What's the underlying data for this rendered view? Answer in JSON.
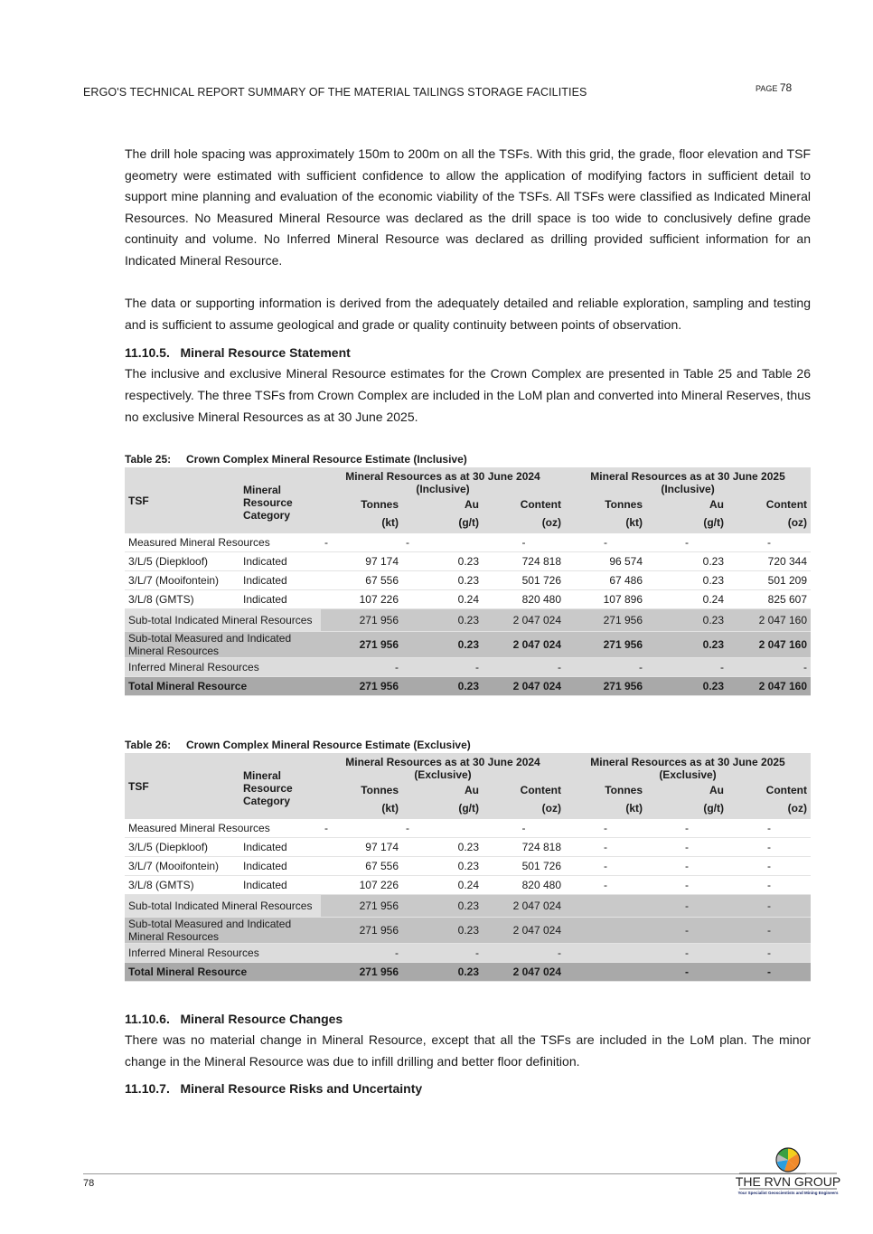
{
  "header": {
    "title": "ERGO'S TECHNICAL REPORT SUMMARY OF THE MATERIAL TAILINGS STORAGE FACILITIES",
    "page_prefix": "PAGE",
    "page_number": "78"
  },
  "paragraphs": {
    "p1": "The drill hole spacing was approximately 150m to 200m on all the TSFs. With this grid, the grade, floor elevation and TSF geometry were estimated with sufficient confidence to allow the application of modifying factors in sufficient detail to support mine planning and evaluation of the economic viability of the TSFs. All TSFs were classified as Indicated Mineral Resources. No Measured Mineral Resource was declared as the drill space is too wide to conclusively define grade continuity and volume. No Inferred Mineral Resource was declared as drilling provided sufficient information for an Indicated Mineral Resource.",
    "p2": "The data or supporting information is derived from the adequately detailed and reliable exploration, sampling and testing and is sufficient to assume geological and grade or quality continuity between points of observation.",
    "h1": "11.10.5.   Mineral Resource Statement",
    "p3": "The inclusive and exclusive Mineral Resource estimates for the Crown Complex are presented in Table 25 and Table 26 respectively. The three TSFs from Crown Complex are included in the LoM plan and converted into Mineral Reserves, thus no exclusive Mineral Resources as at 30 June 2025.",
    "h2": "11.10.6.   Mineral Resource Changes",
    "p4": "There was no material change in Mineral Resource, except that all the TSFs are included in the LoM plan. The minor change in the Mineral Resource was due to infill drilling and better floor definition.",
    "h3": "11.10.7.   Mineral Resource Risks and Uncertainty"
  },
  "tables": [
    {
      "label": "Table 25:",
      "title": "Crown Complex Mineral Resource Estimate (Inclusive)",
      "h_tsf": "TSF",
      "h_cat": "Mineral Resource Category",
      "h_group1": "Mineral Resources as at 30 June 2024 (Inclusive)",
      "h_group2": "Mineral Resources as at 30 June 2025 (Inclusive)",
      "h_cols": [
        "Tonnes",
        "Au",
        "Content",
        "Tonnes",
        "Au",
        "Content"
      ],
      "h_units": [
        "(kt)",
        "(g/t)",
        "(oz)",
        "(kt)",
        "(g/t)",
        "(oz)"
      ],
      "measured": {
        "label": "Measured Mineral Resources",
        "values": [
          "-",
          "-",
          "-",
          "-",
          "-",
          "-"
        ]
      },
      "rows": [
        {
          "tsf": "3/L/5 (Diepkloof)",
          "cat": "Indicated",
          "values": [
            "97 174",
            "0.23",
            "724 818",
            "96 574",
            "0.23",
            "720 344"
          ]
        },
        {
          "tsf": "3/L/7 (Mooifontein)",
          "cat": "Indicated",
          "values": [
            "67 556",
            "0.23",
            "501 726",
            "67 486",
            "0.23",
            "501 209"
          ]
        },
        {
          "tsf": "3/L/8 (GMTS)",
          "cat": "Indicated",
          "values": [
            "107 226",
            "0.24",
            "820 480",
            "107 896",
            "0.24",
            "825 607"
          ]
        }
      ],
      "subtotal_indicated": {
        "label": "Sub-total Indicated Mineral Resources",
        "values": [
          "271 956",
          "0.23",
          "2 047 024",
          "271 956",
          "0.23",
          "2 047 160"
        ]
      },
      "subtotal_mi": {
        "label": "Sub-total Measured and Indicated Mineral Resources",
        "values": [
          "271 956",
          "0.23",
          "2 047 024",
          "271 956",
          "0.23",
          "2 047 160"
        ]
      },
      "inferred": {
        "label": "Inferred Mineral Resources",
        "values": [
          "-",
          "-",
          "-",
          "-",
          "-",
          "-"
        ]
      },
      "total": {
        "label": "Total Mineral Resource",
        "values": [
          "271 956",
          "0.23",
          "2 047 024",
          "271 956",
          "0.23",
          "2 047 160"
        ]
      }
    },
    {
      "label": "Table 26:",
      "title": "Crown Complex Mineral Resource Estimate (Exclusive)",
      "h_tsf": "TSF",
      "h_cat": "Mineral Resource Category",
      "h_group1": "Mineral Resources as at 30 June 2024 (Exclusive)",
      "h_group2": "Mineral Resources as at 30 June 2025 (Exclusive)",
      "h_cols": [
        "Tonnes",
        "Au",
        "Content",
        "Tonnes",
        "Au",
        "Content"
      ],
      "h_units": [
        "(kt)",
        "(g/t)",
        "(oz)",
        "(kt)",
        "(g/t)",
        "(oz)"
      ],
      "measured": {
        "label": "Measured Mineral Resources",
        "values": [
          "-",
          "-",
          "-",
          "-",
          "-",
          "-"
        ]
      },
      "rows": [
        {
          "tsf": "3/L/5 (Diepkloof)",
          "cat": "Indicated",
          "values": [
            "97 174",
            "0.23",
            "724 818",
            "-",
            "-",
            "-"
          ]
        },
        {
          "tsf": "3/L/7 (Mooifontein)",
          "cat": "Indicated",
          "values": [
            "67 556",
            "0.23",
            "501 726",
            "-",
            "-",
            "-"
          ]
        },
        {
          "tsf": "3/L/8 (GMTS)",
          "cat": "Indicated",
          "values": [
            "107 226",
            "0.24",
            "820 480",
            "-",
            "-",
            "-"
          ]
        }
      ],
      "subtotal_indicated": {
        "label": "Sub-total Indicated Mineral Resources",
        "values": [
          "271 956",
          "0.23",
          "2 047 024",
          "",
          "-",
          "-"
        ]
      },
      "subtotal_mi": {
        "label": "Sub-total Measured and Indicated Mineral Resources",
        "values": [
          "271 956",
          "0.23",
          "2 047 024",
          "",
          "-",
          "-"
        ]
      },
      "inferred": {
        "label": "Inferred Mineral Resources",
        "values": [
          "-",
          "-",
          "-",
          "",
          "-",
          "-"
        ]
      },
      "total": {
        "label": "Total Mineral Resource",
        "values": [
          "271 956",
          "0.23",
          "2 047 024",
          "",
          "-",
          "-"
        ]
      }
    }
  ],
  "footer": {
    "page_number": "78",
    "logo_text": "THE RVN GROUP",
    "logo_tagline": "Your Specialist Geoscientists and Mining Engineers"
  }
}
